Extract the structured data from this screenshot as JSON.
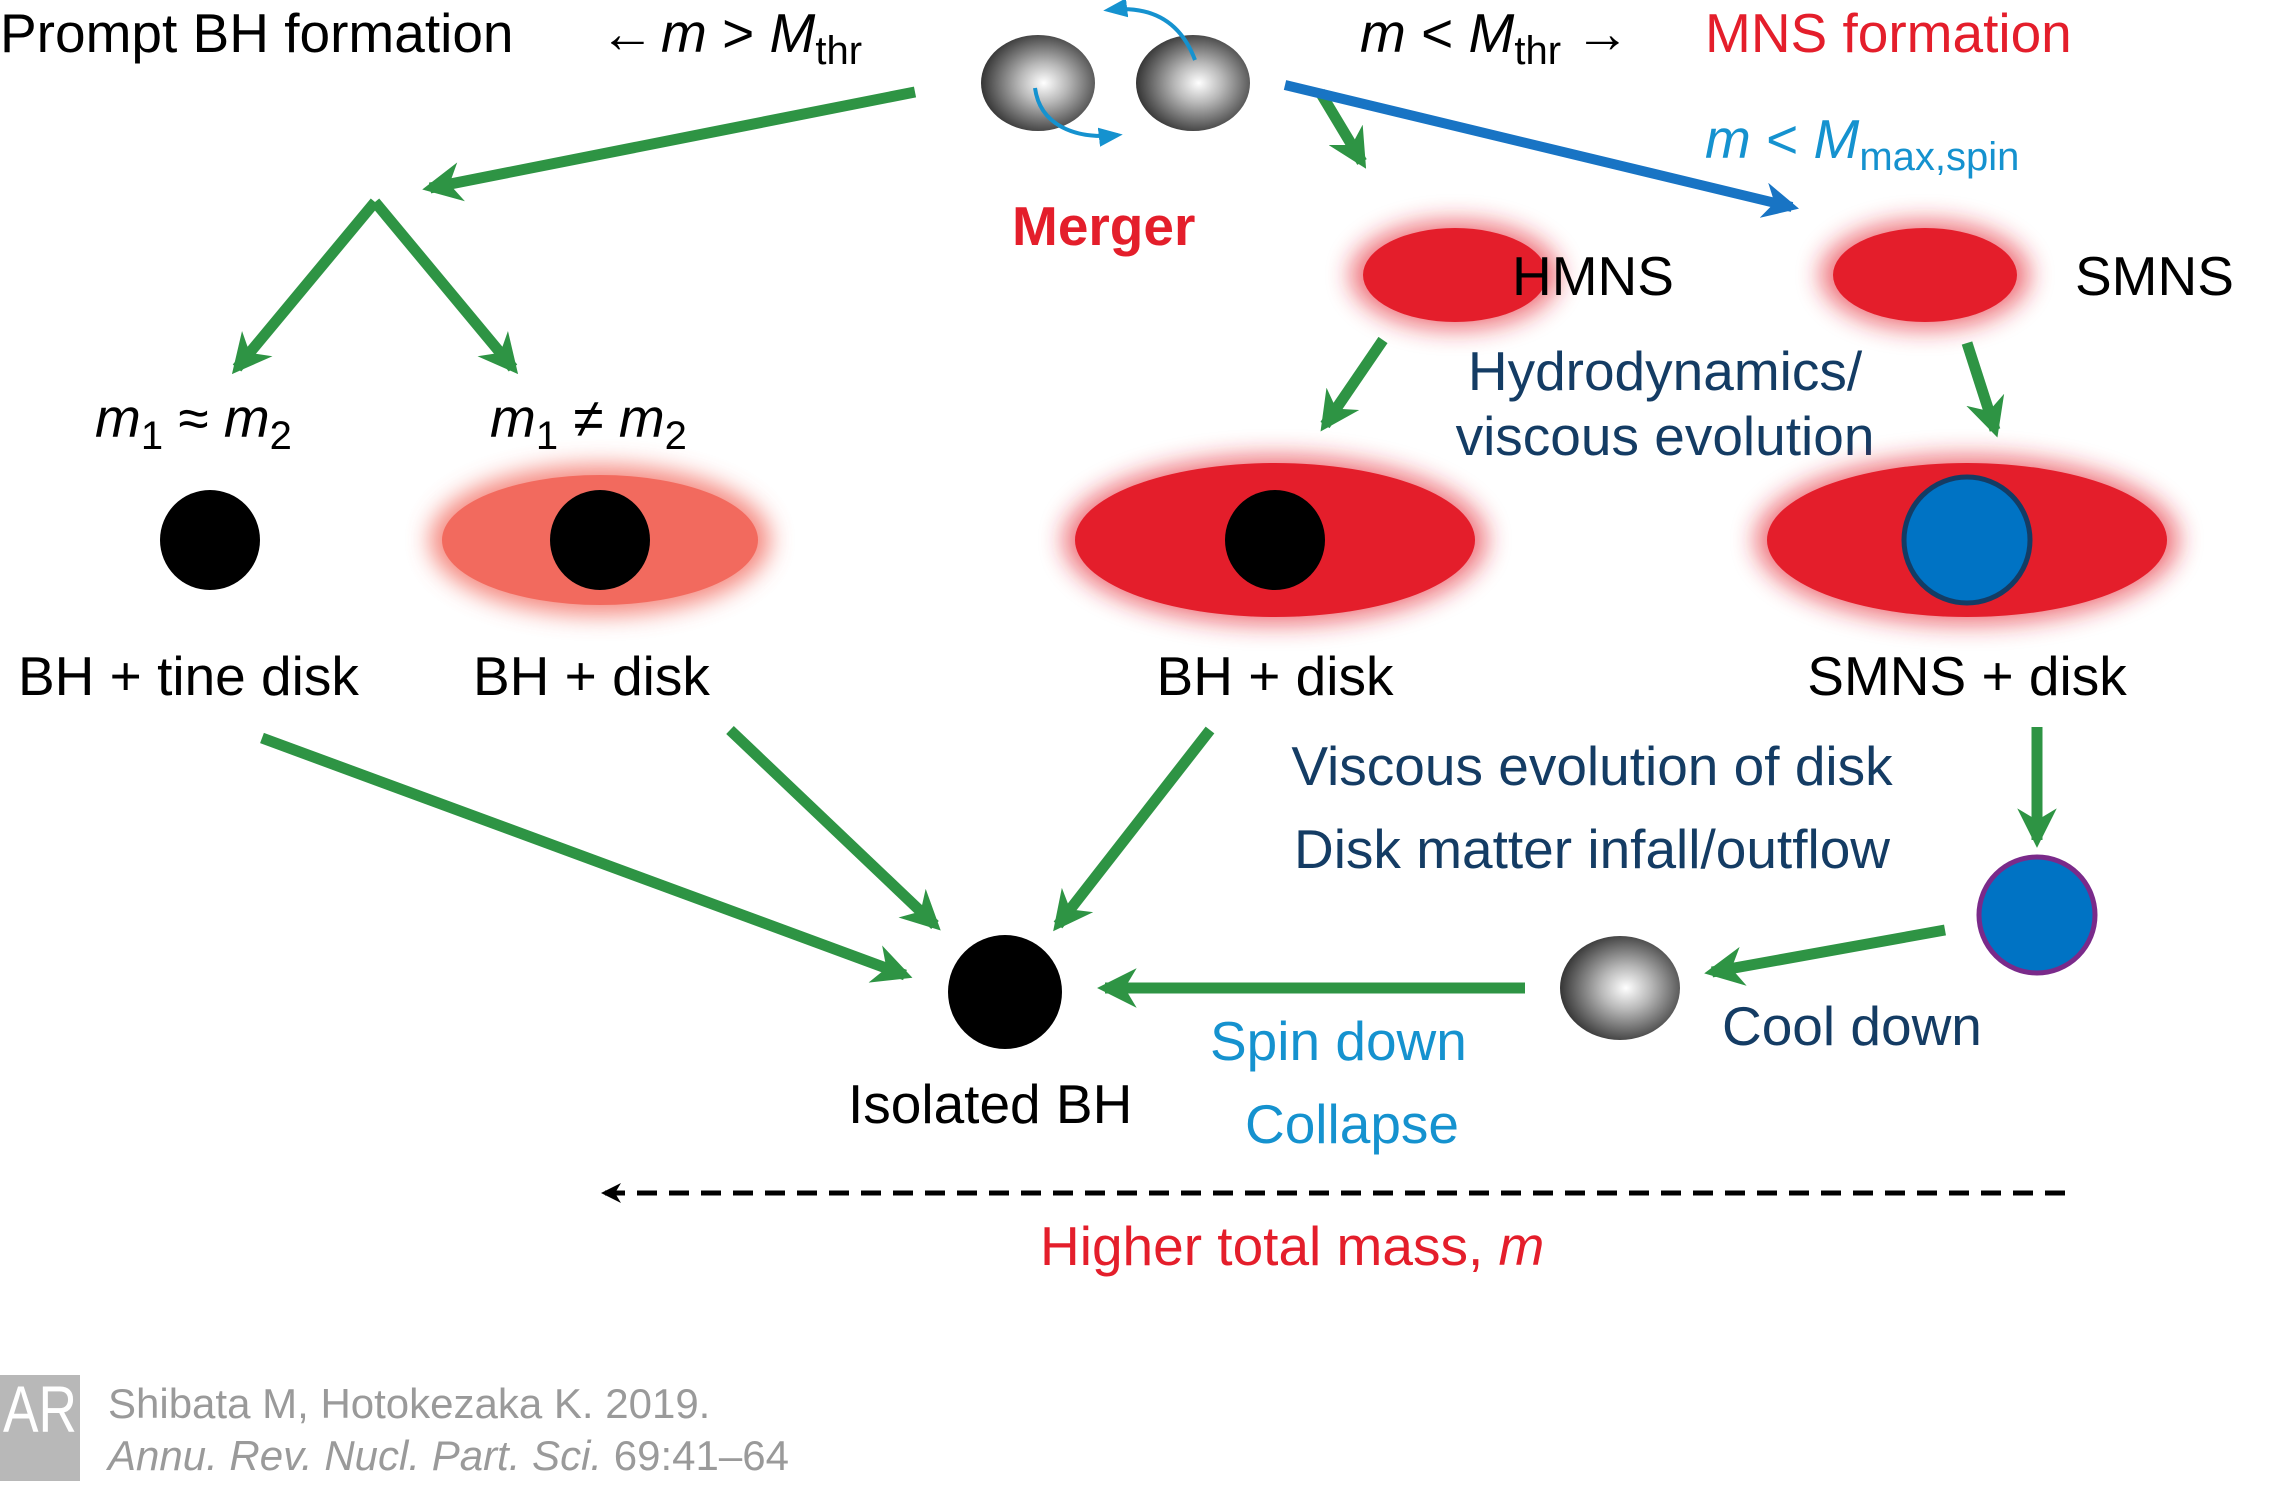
{
  "top": {
    "prompt_bh": "Prompt BH formation",
    "arrow_left": "←",
    "cond_left_m": "m",
    "cond_left_op": " > ",
    "cond_left_M": "M",
    "cond_left_sub": "thr",
    "cond_right_m": "m",
    "cond_right_op": " < ",
    "cond_right_M": "M",
    "cond_right_sub": "thr",
    "arrow_right": "→",
    "mns_formation": "MNS formation",
    "merger": "Merger",
    "spin_m": "m",
    "spin_op": " < ",
    "spin_M": "M",
    "spin_sub": "max,spin"
  },
  "left": {
    "eq_m1": "m",
    "eq_s1": "1",
    "eq_op": " ≈ ",
    "eq_m2": "m",
    "eq_s2": "2",
    "neq_m1": "m",
    "neq_s1": "1",
    "neq_op": " ≠ ",
    "neq_m2": "m",
    "neq_s2": "2",
    "bh_tine_disk": "BH + tine disk",
    "bh_disk": "BH + disk"
  },
  "right": {
    "hmns": "HMNS",
    "smns": "SMNS",
    "hydro_line1": "Hydrodynamics/",
    "hydro_line2": "viscous evolution",
    "bh_disk": "BH + disk",
    "smns_disk": "SMNS + disk",
    "viscous_line1": "Viscous evolution of disk",
    "viscous_line2": "Disk matter infall/outflow",
    "cool_down": "Cool down",
    "spin_down": "Spin down",
    "collapse": "Collapse"
  },
  "bottom": {
    "isolated_bh": "Isolated BH",
    "higher_mass": "Higher total mass, ",
    "higher_mass_m": "m"
  },
  "citation": {
    "logo_text": "AR",
    "line1": "Shibata M, Hotokezaka K. 2019.",
    "journal": "Annu. Rev. Nucl. Part. Sci.",
    "pages": " 69:41–64"
  },
  "colors": {
    "green_arrow": "#2e9444",
    "blue_arrow": "#1874c4",
    "red": "#e41e2b",
    "navy": "#143c64",
    "light_blue": "#1592cf"
  }
}
